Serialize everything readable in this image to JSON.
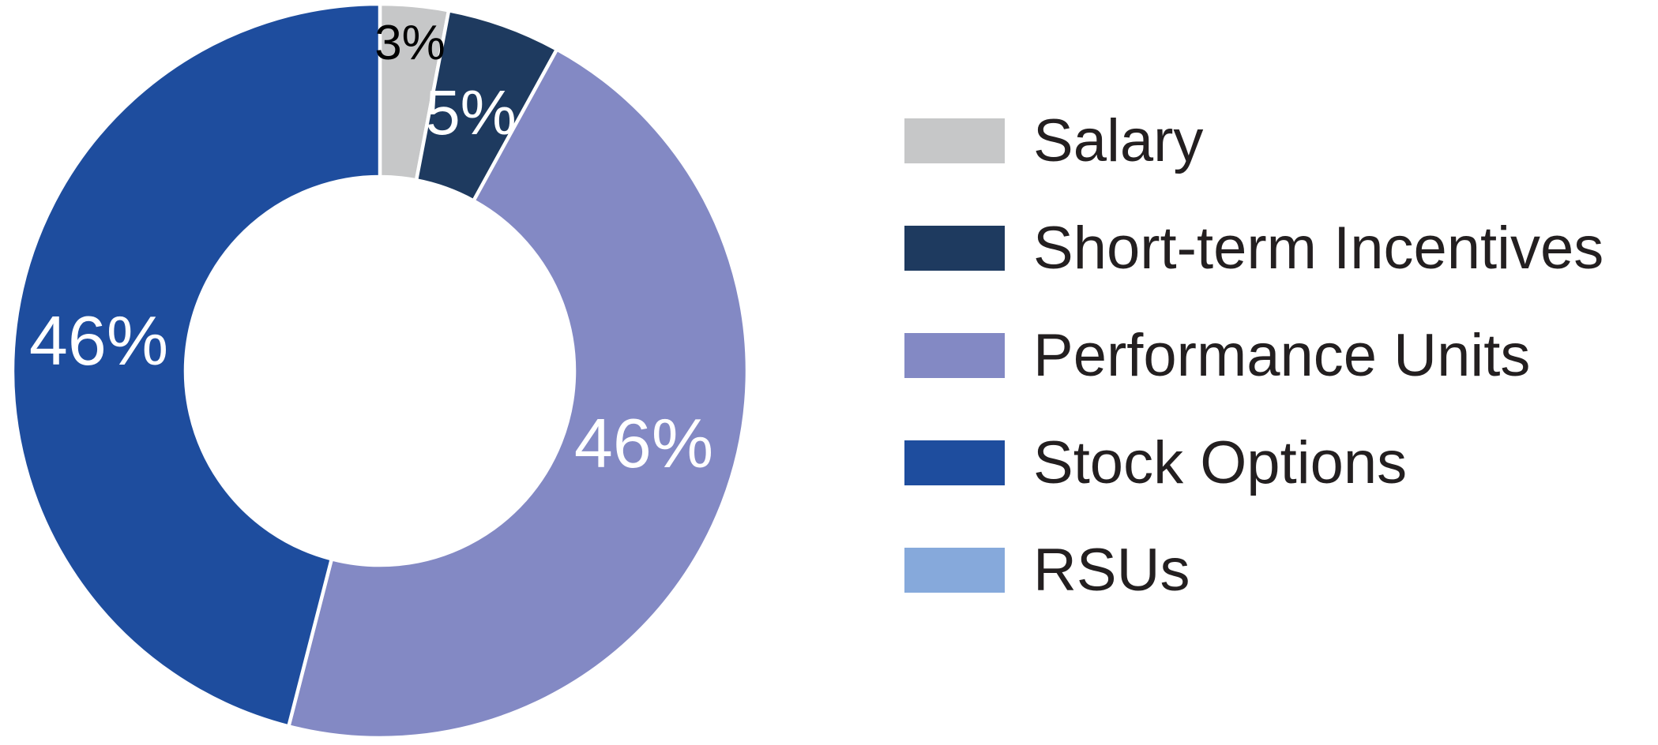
{
  "chart_data": {
    "type": "pie",
    "subtype": "donut",
    "title": "",
    "unit": "percent",
    "direction": "clockwise",
    "start_angle": "12-oclock",
    "inner_radius_ratio": 0.53,
    "legend_position": "right",
    "background_color": "#FFFFFF",
    "gap_color": "#FFFFFF",
    "series": [
      {
        "id": "salary",
        "label": "Salary",
        "value": 3,
        "display": "3%",
        "color": "#C6C7C8",
        "label_color": "#000000"
      },
      {
        "id": "short-term-incentives",
        "label": "Short-term Incentives",
        "value": 5,
        "display": "5%",
        "color": "#1E3A5F",
        "label_color": "#FFFFFF"
      },
      {
        "id": "performance-units",
        "label": "Performance Units",
        "value": 46,
        "display": "46%",
        "color": "#8389C4",
        "label_color": "#FFFFFF"
      },
      {
        "id": "stock-options",
        "label": "Stock Options",
        "value": 46,
        "display": "46%",
        "color": "#1E4D9E",
        "label_color": "#FFFFFF"
      },
      {
        "id": "rsus",
        "label": "RSUs",
        "value": 0,
        "display": "",
        "color": "#86A9DB",
        "label_color": "#FFFFFF"
      }
    ]
  }
}
